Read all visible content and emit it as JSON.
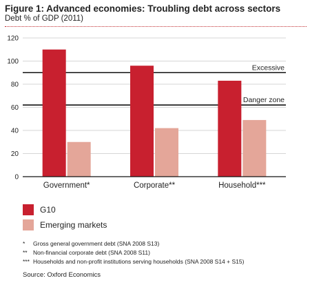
{
  "figure": {
    "title": "Figure 1: Advanced economies: Troubling debt across sectors",
    "subtitle": "Debt % of GDP (2011)"
  },
  "chart_data": {
    "type": "bar",
    "categories": [
      "Government*",
      "Corporate**",
      "Household***"
    ],
    "series": [
      {
        "name": "G10",
        "values": [
          110,
          96,
          83
        ],
        "color": "#c8202f"
      },
      {
        "name": "Emerging markets",
        "values": [
          30,
          42,
          49
        ],
        "color": "#e4a699"
      }
    ],
    "ylim": [
      0,
      120
    ],
    "yticks": [
      0,
      20,
      40,
      60,
      80,
      100,
      120
    ],
    "grid": true,
    "legend_position": "bottom-left",
    "reference_lines": [
      {
        "label": "Excessive",
        "value": 90
      },
      {
        "label": "Danger zone",
        "value": 62
      }
    ]
  },
  "legend": [
    {
      "label": "G10",
      "color": "#c8202f"
    },
    {
      "label": "Emerging markets",
      "color": "#e4a699"
    }
  ],
  "footnotes": [
    {
      "mark": "*",
      "text": "Gross general government debt (SNA 2008 S13)"
    },
    {
      "mark": "**",
      "text": "Non-financial corporate debt (SNA 2008 S11)"
    },
    {
      "mark": "***",
      "text": "Households and non-profit institutions serving households (SNA 2008 S14 + S15)"
    }
  ],
  "source": "Source: Oxford Economics"
}
